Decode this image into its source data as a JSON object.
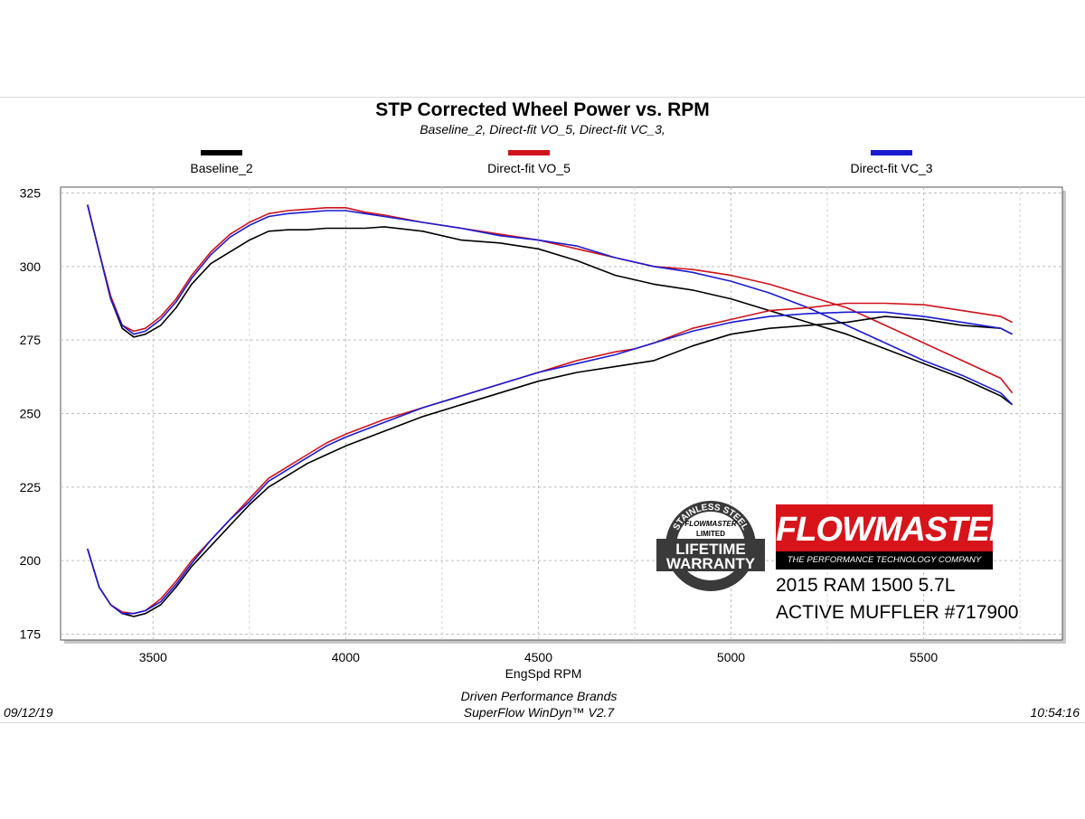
{
  "chart_data": {
    "type": "line",
    "title": "STP Corrected Wheel Power vs. RPM",
    "subtitle": "Baseline_2, Direct-fit VO_5, Direct-fit VC_3,",
    "xlabel": "EngSpd  RPM",
    "ylabel": "",
    "xlim": [
      3260,
      5860
    ],
    "ylim": [
      173,
      327
    ],
    "xticks": [
      3500,
      4000,
      4500,
      5000,
      5500
    ],
    "yticks": [
      175,
      200,
      225,
      250,
      275,
      300,
      325
    ],
    "grid": true,
    "legend_position": "top",
    "series": [
      {
        "name": "Baseline_2",
        "color": "#000000",
        "group": "upper",
        "x": [
          3330,
          3360,
          3390,
          3420,
          3450,
          3480,
          3520,
          3560,
          3600,
          3650,
          3700,
          3750,
          3800,
          3850,
          3900,
          3950,
          4000,
          4050,
          4100,
          4200,
          4300,
          4400,
          4500,
          4600,
          4700,
          4800,
          4900,
          5000,
          5100,
          5200,
          5300,
          5400,
          5500,
          5600,
          5700,
          5730
        ],
        "y": [
          321,
          305,
          289,
          279,
          276,
          277,
          280,
          286,
          294,
          301,
          305,
          309,
          312,
          312.5,
          312.5,
          313,
          313,
          313,
          313.5,
          312,
          309,
          308,
          306,
          302,
          297,
          294,
          292,
          289,
          285,
          281,
          277,
          272,
          267,
          262,
          256,
          253
        ]
      },
      {
        "name": "Direct-fit VO_5",
        "color": "#d0121b",
        "group": "upper",
        "x": [
          3330,
          3360,
          3390,
          3420,
          3450,
          3480,
          3520,
          3560,
          3600,
          3650,
          3700,
          3750,
          3800,
          3850,
          3900,
          3950,
          4000,
          4050,
          4100,
          4200,
          4300,
          4400,
          4500,
          4600,
          4700,
          4800,
          4900,
          5000,
          5100,
          5200,
          5300,
          5400,
          5500,
          5600,
          5700,
          5730
        ],
        "y": [
          321,
          305,
          290,
          280,
          278,
          279,
          283,
          289,
          297,
          305,
          311,
          315,
          318,
          319,
          319.5,
          320,
          320,
          318.5,
          317.5,
          315,
          313,
          311,
          309,
          306,
          303,
          300,
          299,
          297,
          294,
          290,
          286,
          280,
          274,
          268,
          262,
          257
        ]
      },
      {
        "name": "Direct-fit VC_3",
        "color": "#1a1ad0",
        "group": "upper",
        "x": [
          3330,
          3360,
          3390,
          3420,
          3450,
          3480,
          3520,
          3560,
          3600,
          3650,
          3700,
          3750,
          3800,
          3850,
          3900,
          3950,
          4000,
          4050,
          4100,
          4200,
          4300,
          4400,
          4500,
          4600,
          4700,
          4800,
          4900,
          5000,
          5100,
          5200,
          5300,
          5400,
          5500,
          5600,
          5700,
          5730
        ],
        "y": [
          321,
          305,
          289,
          280,
          277,
          278,
          282,
          288,
          296,
          304,
          310,
          314,
          317,
          318,
          318.5,
          319,
          319,
          318,
          317,
          315,
          313,
          310.5,
          309,
          307,
          303,
          300,
          298,
          295,
          291,
          286,
          280,
          274,
          268,
          263,
          257,
          253
        ]
      },
      {
        "name": "Baseline_2",
        "color": "#000000",
        "group": "lower",
        "x": [
          3330,
          3360,
          3390,
          3420,
          3450,
          3480,
          3520,
          3560,
          3600,
          3650,
          3700,
          3750,
          3800,
          3850,
          3900,
          3950,
          4000,
          4100,
          4200,
          4300,
          4400,
          4500,
          4600,
          4700,
          4750,
          4800,
          4900,
          5000,
          5100,
          5200,
          5300,
          5400,
          5500,
          5600,
          5700,
          5730
        ],
        "y": [
          204,
          191,
          185,
          182,
          181,
          182,
          185,
          191,
          198,
          205,
          212,
          219,
          225,
          229,
          233,
          236,
          239,
          244,
          249,
          253,
          257,
          261,
          264,
          266,
          267,
          268,
          273,
          277,
          279,
          280,
          281,
          283,
          282,
          280,
          279,
          277
        ]
      },
      {
        "name": "Direct-fit VO_5",
        "color": "#d0121b",
        "group": "lower",
        "x": [
          3330,
          3360,
          3390,
          3420,
          3450,
          3480,
          3520,
          3560,
          3600,
          3650,
          3700,
          3750,
          3800,
          3850,
          3900,
          3950,
          4000,
          4100,
          4200,
          4300,
          4400,
          4500,
          4600,
          4700,
          4750,
          4800,
          4900,
          5000,
          5100,
          5200,
          5300,
          5400,
          5500,
          5600,
          5700,
          5730
        ],
        "y": [
          204,
          191,
          185,
          182.5,
          182,
          183,
          187,
          193,
          200,
          207,
          214,
          221,
          228,
          232,
          236,
          240,
          243,
          248,
          252,
          256,
          260,
          264,
          268,
          271,
          272,
          274,
          279,
          282,
          285,
          286,
          287.5,
          287.5,
          287,
          285,
          283,
          281
        ]
      },
      {
        "name": "Direct-fit VC_3",
        "color": "#1a1ad0",
        "group": "lower",
        "x": [
          3330,
          3360,
          3390,
          3420,
          3450,
          3480,
          3520,
          3560,
          3600,
          3650,
          3700,
          3750,
          3800,
          3850,
          3900,
          3950,
          4000,
          4100,
          4200,
          4300,
          4400,
          4500,
          4600,
          4700,
          4750,
          4800,
          4900,
          5000,
          5100,
          5200,
          5300,
          5400,
          5500,
          5600,
          5700,
          5730
        ],
        "y": [
          204,
          191,
          185,
          182,
          182,
          183,
          186,
          192,
          199,
          207,
          214,
          220,
          227,
          231,
          235,
          239,
          242,
          247,
          252,
          256,
          260,
          264,
          267,
          270,
          272,
          274,
          278,
          281,
          283,
          284,
          284.5,
          284.5,
          283,
          281,
          279,
          277
        ]
      }
    ]
  },
  "legend": [
    {
      "label": "Baseline_2",
      "color": "#000000"
    },
    {
      "label": "Direct-fit VO_5",
      "color": "#d0121b"
    },
    {
      "label": "Direct-fit VC_3",
      "color": "#1a1ad0"
    }
  ],
  "footer": {
    "date": "09/12/19",
    "company": "Driven Performance Brands",
    "software": "SuperFlow WinDyn™  V2.7",
    "time": "10:54:16"
  },
  "branding": {
    "brand_name": "FLOWMASTER",
    "tagline": "THE PERFORMANCE TECHNOLOGY COMPANY",
    "badge_top": "STAINLESS STEEL",
    "badge_brand": "FLOWMASTER",
    "badge_limited": "LIMITED",
    "badge_line1": "LIFETIME",
    "badge_line2": "WARRANTY",
    "vehicle": "2015 RAM 1500 5.7L",
    "product": "ACTIVE MUFFLER #717900"
  }
}
